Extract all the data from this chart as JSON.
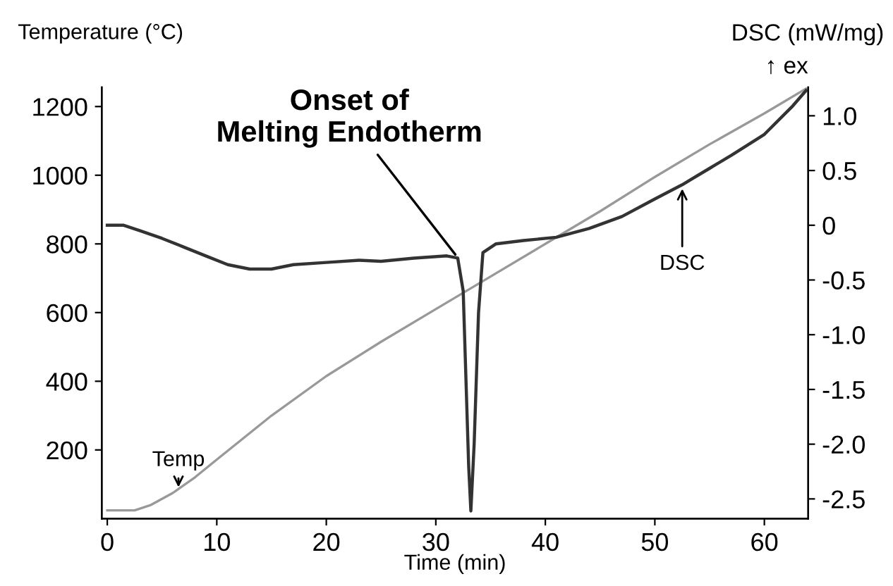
{
  "chart_data": {
    "type": "line",
    "xlabel": "Time (min)",
    "ylabel": "Temperature (°C)",
    "y2label": "DSC (mW/mg)",
    "xlim": [
      -0.5,
      64
    ],
    "xticks": [
      0,
      10,
      20,
      30,
      40,
      50,
      60
    ],
    "ylim": [
      0,
      1256
    ],
    "yticks": [
      200,
      400,
      600,
      800,
      1000,
      1200
    ],
    "y2lim": [
      -2.68,
      1.26
    ],
    "y2ticks": [
      {
        "value": -2.5,
        "label": "-2.5"
      },
      {
        "value": -2.0,
        "label": "-2.0"
      },
      {
        "value": -1.5,
        "label": "-1.5"
      },
      {
        "value": -1.0,
        "label": "-1.0"
      },
      {
        "value": -0.5,
        "label": "-0.5"
      },
      0,
      {
        "value": 0.5,
        "label": "0.5"
      },
      {
        "value": 1.0,
        "label": "1.0"
      }
    ],
    "grid": false,
    "legend": false,
    "marker": "none",
    "line_style": "solid",
    "series": [
      {
        "color": "#999999",
        "x": [
          0,
          2.5,
          4,
          6,
          8,
          10,
          15,
          20,
          25,
          30,
          35,
          40,
          45,
          50,
          55,
          60,
          63.8
        ],
        "values": [
          24,
          24,
          40,
          75,
          120,
          172,
          300,
          415,
          515,
          610,
          705,
          800,
          895,
          995,
          1090,
          1180,
          1252
        ]
      },
      {
        "color": "#333333",
        "axis": "y2",
        "x": [
          0,
          1.5,
          3,
          5,
          7,
          9,
          11,
          13,
          15,
          17,
          20,
          23,
          25,
          28,
          31,
          32,
          32.5,
          33,
          33.2,
          33.5,
          33.9,
          34.3,
          35.5,
          38,
          41,
          44,
          47,
          50,
          52.5,
          55,
          57,
          60,
          62.5,
          63.8
        ],
        "values": [
          0.0,
          0.0,
          -0.05,
          -0.12,
          -0.2,
          -0.28,
          -0.36,
          -0.4,
          -0.4,
          -0.36,
          -0.34,
          -0.32,
          -0.33,
          -0.3,
          -0.28,
          -0.3,
          -0.6,
          -2.2,
          -2.61,
          -2.0,
          -0.8,
          -0.25,
          -0.17,
          -0.14,
          -0.11,
          -0.03,
          0.08,
          0.24,
          0.37,
          0.52,
          0.64,
          0.83,
          1.08,
          1.23
        ]
      }
    ],
    "annotations": [
      {
        "text": "Onset of\nMelting Endotherm",
        "x": 32,
        "y": 760
      },
      {
        "text": "Temp",
        "x": 6.5,
        "y": 80
      },
      {
        "text": "DSC",
        "x": 52.5,
        "y": 972
      },
      "↑ ex"
    ]
  }
}
